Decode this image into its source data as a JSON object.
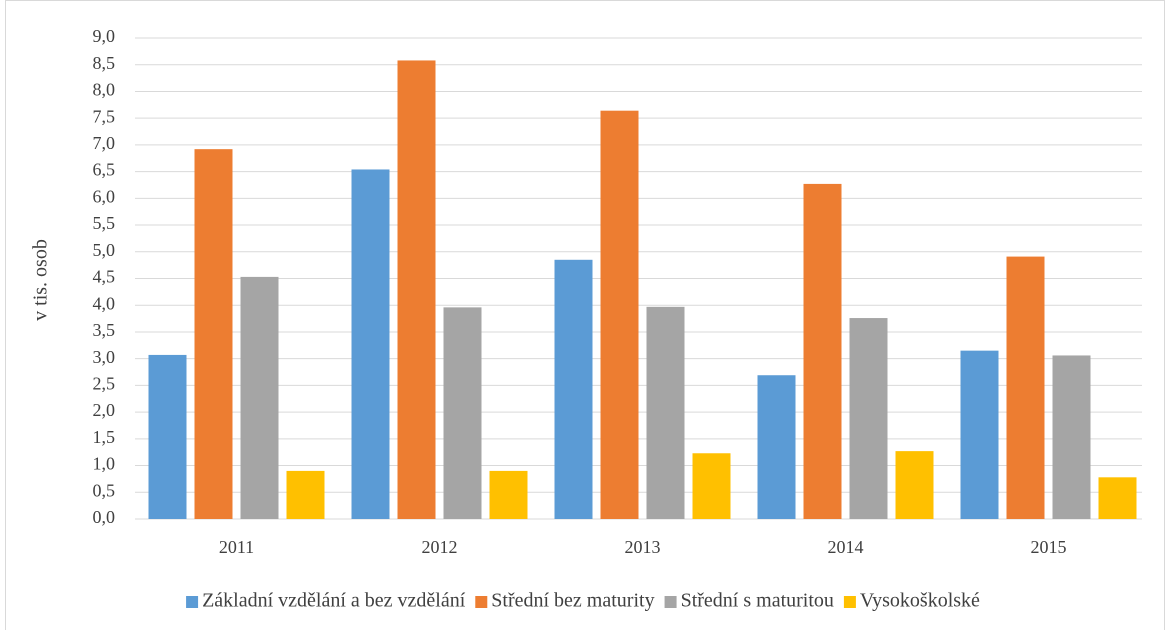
{
  "chart_data": {
    "type": "bar",
    "y_label": "v tis. osob",
    "categories": [
      "2011",
      "2012",
      "2013",
      "2014",
      "2015"
    ],
    "series": [
      {
        "name": "Základní vzdělání a bez vzdělání",
        "color": "#5b9bd5",
        "values": [
          3.07,
          6.54,
          4.85,
          2.69,
          3.15
        ]
      },
      {
        "name": "Střední bez maturity",
        "color": "#ed7d31",
        "values": [
          6.92,
          8.58,
          7.64,
          6.27,
          4.91
        ]
      },
      {
        "name": "Střední s maturitou",
        "color": "#a5a5a5",
        "values": [
          4.53,
          3.96,
          3.97,
          3.76,
          3.06
        ]
      },
      {
        "name": "Vysokoškolské",
        "color": "#ffc000",
        "values": [
          0.9,
          0.9,
          1.23,
          1.27,
          0.78
        ]
      }
    ],
    "ylim": [
      0,
      9
    ],
    "yticks": [
      {
        "value": 0,
        "label": "0,0"
      },
      {
        "value": 0.5,
        "label": "0,5"
      },
      {
        "value": 1,
        "label": "1,0"
      },
      {
        "value": 1.5,
        "label": "1,5"
      },
      {
        "value": 2,
        "label": "2,0"
      },
      {
        "value": 2.5,
        "label": "2,5"
      },
      {
        "value": 3,
        "label": "3,0"
      },
      {
        "value": 3.5,
        "label": "3,5"
      },
      {
        "value": 4,
        "label": "4,0"
      },
      {
        "value": 4.5,
        "label": "4,5"
      },
      {
        "value": 5,
        "label": "5,0"
      },
      {
        "value": 5.5,
        "label": "5,5"
      },
      {
        "value": 6,
        "label": "6,0"
      },
      {
        "value": 6.5,
        "label": "6,5"
      },
      {
        "value": 7,
        "label": "7,0"
      },
      {
        "value": 7.5,
        "label": "7,5"
      },
      {
        "value": 8,
        "label": "8,0"
      },
      {
        "value": 8.5,
        "label": "8,5"
      },
      {
        "value": 9,
        "label": "9,0"
      }
    ],
    "grid": true,
    "legend": "bottom"
  }
}
